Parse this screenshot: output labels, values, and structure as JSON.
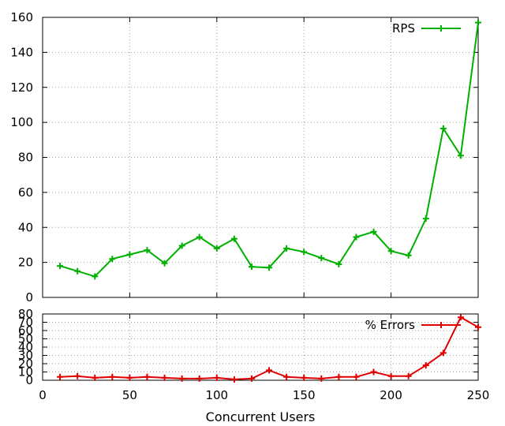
{
  "chart_data": [
    {
      "type": "line",
      "panel": "top",
      "xlabel": "",
      "ylabel": "",
      "xlim": [
        0,
        250
      ],
      "ylim": [
        0,
        160
      ],
      "yticks": [
        0,
        20,
        40,
        60,
        80,
        100,
        120,
        140,
        160
      ],
      "xticks": [
        0,
        50,
        100,
        150,
        200,
        250
      ],
      "grid": true,
      "legend_position": "top-right",
      "series": [
        {
          "name": "RPS",
          "color": "#00b000",
          "marker": "plus",
          "x": [
            10,
            20,
            30,
            40,
            50,
            60,
            70,
            80,
            90,
            100,
            110,
            120,
            130,
            140,
            150,
            160,
            170,
            180,
            190,
            200,
            210,
            220,
            230,
            240,
            250
          ],
          "y": [
            18,
            15,
            12,
            22,
            24.5,
            27,
            19.5,
            29.5,
            34.5,
            28,
            33.5,
            17.5,
            17,
            28,
            26,
            22.5,
            19,
            34.5,
            37.5,
            26.5,
            24,
            45,
            96.5,
            81,
            157
          ]
        }
      ]
    },
    {
      "type": "line",
      "panel": "bottom",
      "xlabel": "Concurrent Users",
      "ylabel": "",
      "xlim": [
        0,
        250
      ],
      "ylim": [
        0,
        80
      ],
      "yticks": [
        0,
        10,
        20,
        30,
        40,
        50,
        60,
        70,
        80
      ],
      "xticks": [
        0,
        50,
        100,
        150,
        200,
        250
      ],
      "grid": true,
      "legend_position": "top-right",
      "series": [
        {
          "name": "% Errors",
          "color": "#e00000",
          "marker": "plus",
          "x": [
            10,
            20,
            30,
            40,
            50,
            60,
            70,
            80,
            90,
            100,
            110,
            120,
            130,
            140,
            150,
            160,
            170,
            180,
            190,
            200,
            210,
            220,
            230,
            240,
            250
          ],
          "y": [
            4,
            5,
            3,
            4,
            3,
            4,
            3,
            2,
            2,
            3,
            1,
            2,
            12,
            4,
            3,
            2,
            4,
            4,
            10,
            5,
            5,
            18,
            33,
            76,
            64
          ]
        }
      ]
    }
  ]
}
